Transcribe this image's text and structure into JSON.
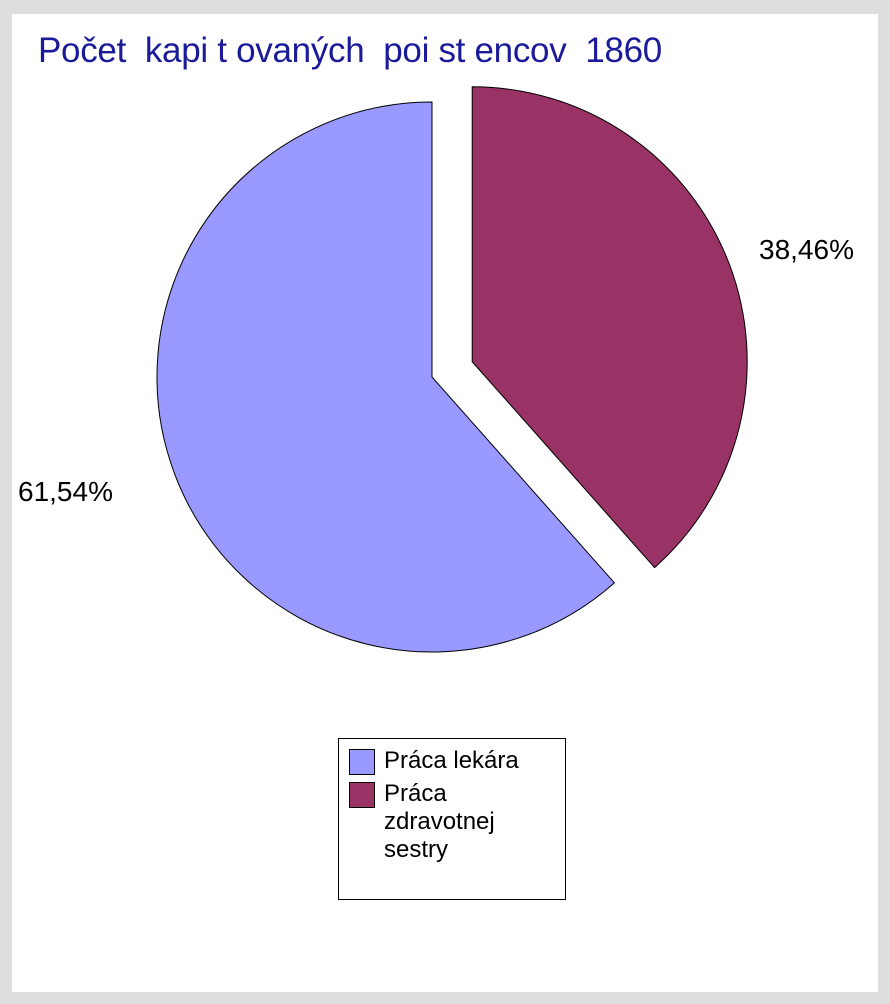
{
  "chart_data": {
    "type": "pie",
    "title": "Počet  kapi t ovaných  poi st encov  1860",
    "slices": [
      {
        "name": "Práca lekára",
        "value": 61.54,
        "label": "61,54%",
        "color": "#9999ff"
      },
      {
        "name": "Práca zdravotnej sestry",
        "value": 38.46,
        "label": "38,46%",
        "color": "#993366",
        "exploded": true
      }
    ],
    "legend_position": "bottom",
    "start_angle_deg": 0,
    "direction": "clockwise"
  }
}
